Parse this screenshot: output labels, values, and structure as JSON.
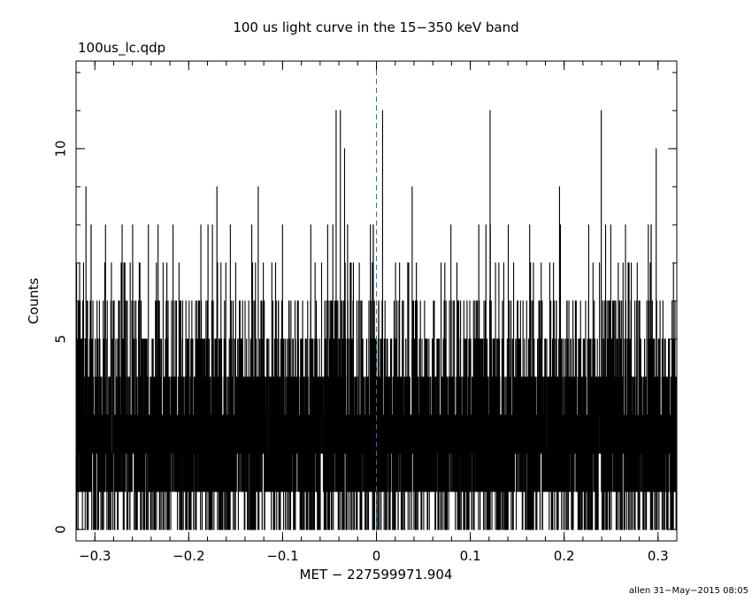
{
  "chart_data": {
    "type": "line",
    "title": "100 us light curve in the 15−350 keV band",
    "subtitle": "100us_lc.qdp",
    "xlabel": "MET − 227599971.904",
    "ylabel": "Counts",
    "xlim": [
      -0.32,
      0.32
    ],
    "ylim": [
      -0.3,
      12.3
    ],
    "x_ticks": [
      {
        "value": -0.3,
        "label": "−0.3"
      },
      {
        "value": -0.2,
        "label": "−0.2"
      },
      {
        "value": -0.1,
        "label": "−0.1"
      },
      {
        "value": 0,
        "label": "0"
      },
      {
        "value": 0.1,
        "label": "0.1"
      },
      {
        "value": 0.2,
        "label": "0.2"
      },
      {
        "value": 0.3,
        "label": "0.3"
      }
    ],
    "y_ticks": [
      {
        "value": 0,
        "label": "0"
      },
      {
        "value": 5,
        "label": "5"
      },
      {
        "value": 10,
        "label": "10"
      }
    ],
    "x_minor_step": 0.02,
    "y_minor_step": 1,
    "bin_width": 0.0001,
    "series": [
      {
        "style": "histogram-step",
        "color": "#000000",
        "mean_counts": 2.6,
        "max_counts": 11,
        "peaks": [
          {
            "x": -0.3095,
            "y": 9
          },
          {
            "x": -0.271,
            "y": 8
          },
          {
            "x": -0.243,
            "y": 8
          },
          {
            "x": -0.17,
            "y": 9
          },
          {
            "x": -0.126,
            "y": 9
          },
          {
            "x": -0.043,
            "y": 11
          },
          {
            "x": -0.034,
            "y": 10
          },
          {
            "x": -0.0385,
            "y": 11
          },
          {
            "x": 0.0065,
            "y": 11
          },
          {
            "x": 0.038,
            "y": 9
          },
          {
            "x": 0.121,
            "y": 11
          },
          {
            "x": 0.195,
            "y": 9
          },
          {
            "x": 0.2395,
            "y": 11
          },
          {
            "x": 0.298,
            "y": 10
          }
        ]
      }
    ],
    "reference_line": {
      "x": 0,
      "color": "#1f77b4",
      "style": "dashed"
    }
  },
  "footer": "allen 31−May−2015 08:05"
}
